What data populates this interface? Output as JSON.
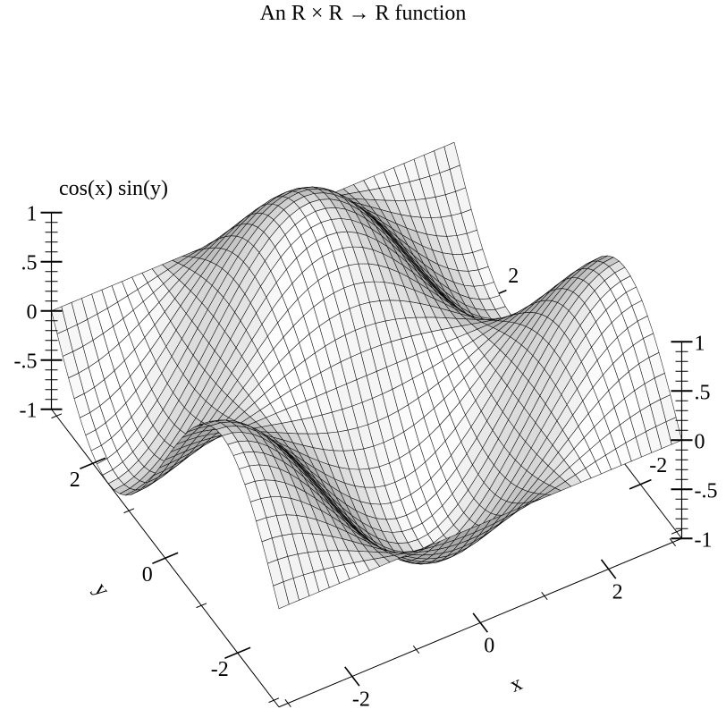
{
  "chart_data": {
    "type": "surface3d",
    "title": "An R × R → R function",
    "function": "cos(x) sin(y)",
    "xlabel": "x",
    "ylabel": "y",
    "zlabel": "cos(x) sin(y)",
    "xlim": [
      -3.14159,
      3.14159
    ],
    "ylim": [
      -3.14159,
      3.14159
    ],
    "zlim": [
      -1,
      1
    ],
    "x_ticks": [
      {
        "value": -2,
        "label": "-2"
      },
      {
        "value": 0,
        "label": "0"
      },
      {
        "value": 2,
        "label": "2"
      }
    ],
    "y_ticks": [
      {
        "value": -2,
        "label": "-2"
      },
      {
        "value": 0,
        "label": "0"
      },
      {
        "value": 2,
        "label": "2"
      }
    ],
    "z_ticks": [
      {
        "value": -1,
        "label": "-1"
      },
      {
        "value": -0.5,
        "label": "-.5"
      },
      {
        "value": 0,
        "label": "0"
      },
      {
        "value": 0.5,
        "label": ".5"
      },
      {
        "value": 1,
        "label": "1"
      }
    ],
    "colors": {
      "line": "#000000",
      "surface_light": "#ffffff",
      "surface_dark": "#b4b4b4"
    }
  }
}
